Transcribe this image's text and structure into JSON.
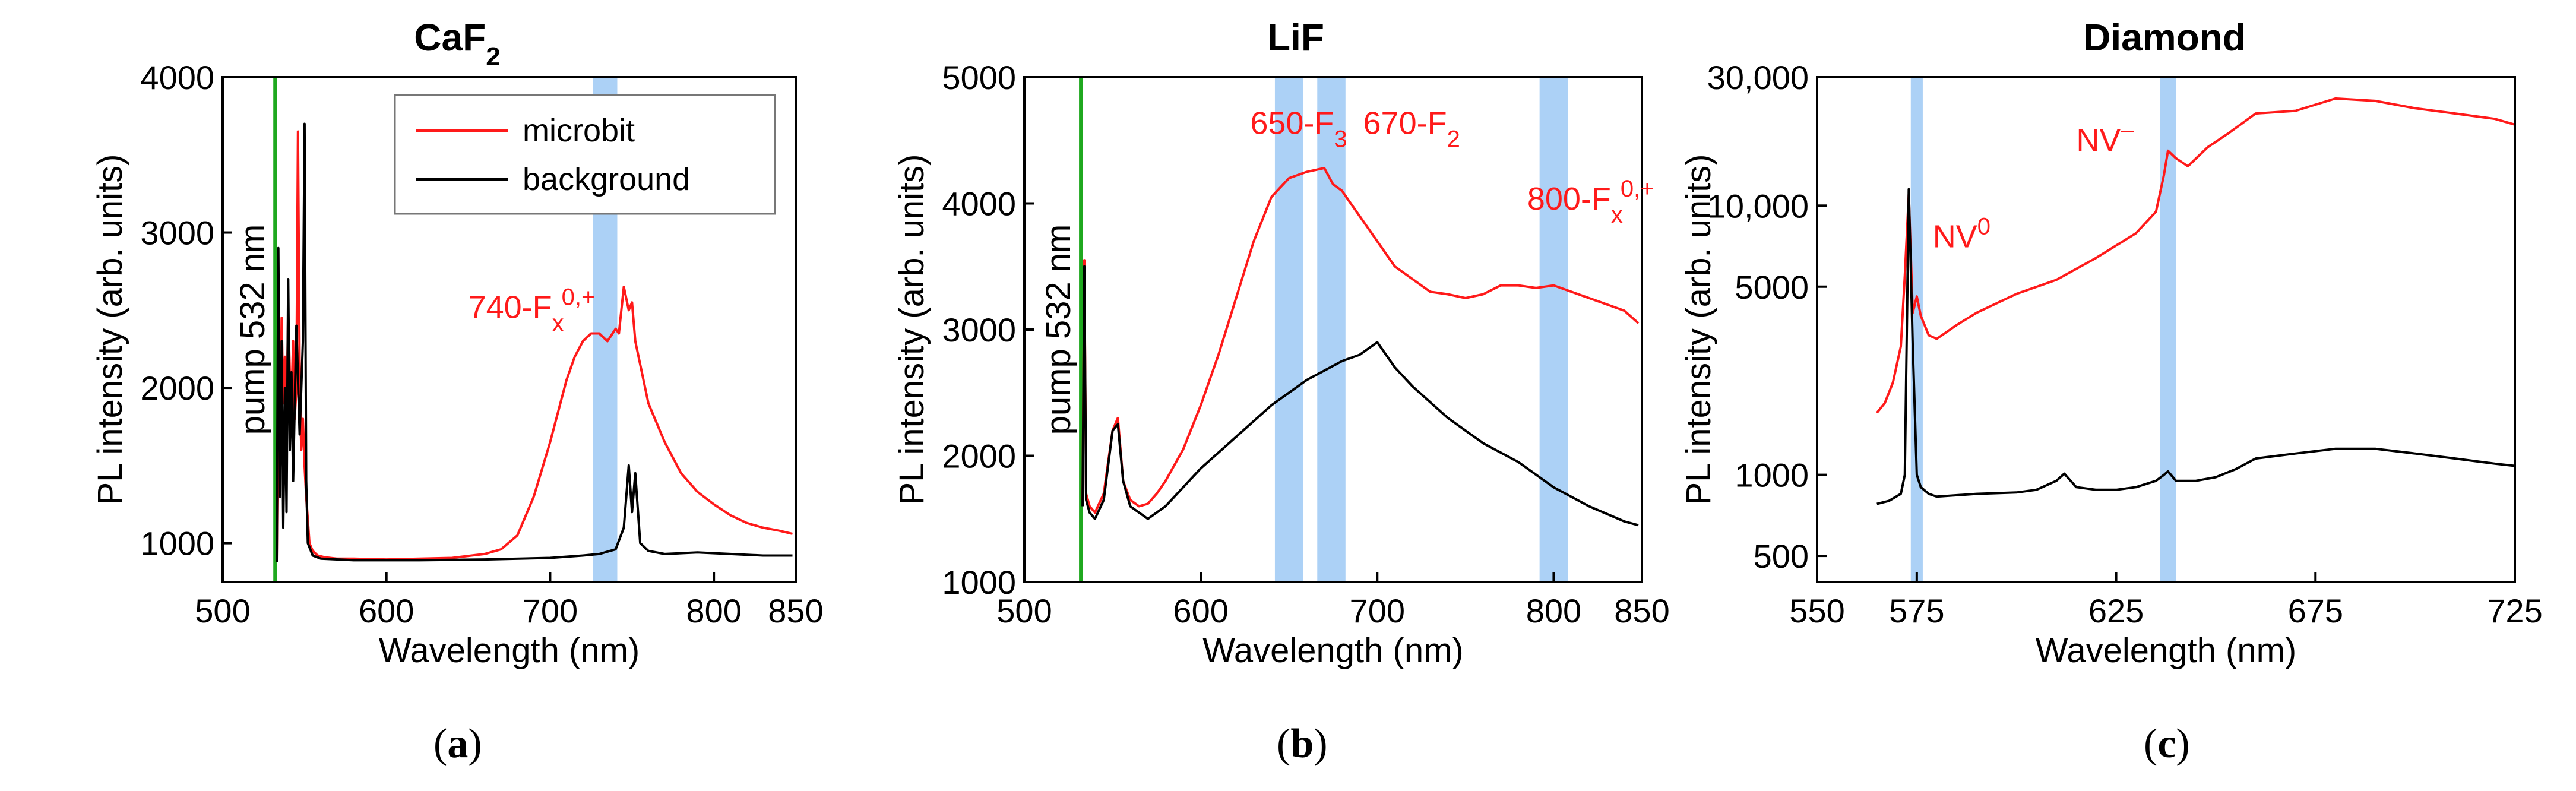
{
  "colors": {
    "microbit": "#ff1a1a",
    "background": "#000000",
    "pump": "#1fa81f",
    "band": "#9ec9f5",
    "annotation": "#ff1a1a"
  },
  "chart_data": [
    {
      "type": "line",
      "panel": "a",
      "caption": "a",
      "title": "CaF",
      "title_sub": "2",
      "xlabel": "Wavelength (nm)",
      "ylabel": "PL intensity (arb. units)",
      "xlim": [
        500,
        850
      ],
      "ylim": [
        750,
        4000
      ],
      "y_scale": "linear",
      "x_ticks": [
        500,
        600,
        700,
        800,
        850
      ],
      "x_tick_labels": [
        "500",
        "600",
        "700",
        "800",
        "850"
      ],
      "y_ticks": [
        1000,
        2000,
        3000,
        4000
      ],
      "y_tick_labels": [
        "1000",
        "2000",
        "3000",
        "4000"
      ],
      "legend": {
        "position": "top-right",
        "entries": [
          "microbit",
          "background"
        ]
      },
      "pump_line": {
        "x": 532,
        "label": "pump 532 nm"
      },
      "bands": [
        {
          "from": 726,
          "to": 741
        }
      ],
      "annotations": [
        {
          "text": "740-F",
          "sub": "x",
          "sup": "0,+",
          "x": 650,
          "y": 2450
        }
      ],
      "series": [
        {
          "name": "microbit",
          "x": [
            533,
            534,
            535,
            536,
            537,
            538,
            539,
            540,
            541,
            542,
            543,
            544,
            545,
            546,
            547,
            548,
            549,
            550,
            551,
            552,
            553,
            555,
            558,
            562,
            570,
            580,
            600,
            620,
            640,
            660,
            670,
            680,
            690,
            700,
            705,
            710,
            715,
            720,
            725,
            730,
            735,
            740,
            742,
            745,
            748,
            750,
            752,
            755,
            760,
            770,
            780,
            790,
            800,
            810,
            820,
            830,
            840,
            848
          ],
          "y": [
            900,
            2000,
            1600,
            2450,
            1900,
            2200,
            1800,
            2500,
            2100,
            1900,
            2300,
            1800,
            2000,
            3650,
            2100,
            1600,
            1800,
            1500,
            1300,
            1150,
            1000,
            950,
            920,
            910,
            900,
            900,
            895,
            900,
            905,
            930,
            960,
            1050,
            1300,
            1650,
            1850,
            2050,
            2200,
            2300,
            2350,
            2350,
            2300,
            2380,
            2350,
            2650,
            2500,
            2550,
            2300,
            2150,
            1900,
            1650,
            1450,
            1330,
            1250,
            1180,
            1130,
            1100,
            1080,
            1060
          ]
        },
        {
          "name": "background",
          "x": [
            533,
            534,
            535,
            536,
            537,
            538,
            539,
            540,
            541,
            542,
            543,
            545,
            547,
            549,
            550,
            551,
            552,
            555,
            560,
            580,
            620,
            660,
            700,
            720,
            730,
            740,
            745,
            748,
            750,
            752,
            755,
            760,
            770,
            790,
            810,
            830,
            848
          ],
          "y": [
            880,
            2900,
            1300,
            2300,
            1100,
            2000,
            1200,
            2700,
            1600,
            2100,
            1400,
            2400,
            1700,
            2300,
            3700,
            1400,
            1000,
            920,
            900,
            890,
            890,
            895,
            905,
            920,
            930,
            960,
            1100,
            1500,
            1200,
            1450,
            1000,
            950,
            930,
            940,
            930,
            920,
            920
          ]
        }
      ]
    },
    {
      "type": "line",
      "panel": "b",
      "caption": "b",
      "title": "LiF",
      "xlabel": "Wavelength (nm)",
      "ylabel": "PL intensity (arb. units)",
      "xlim": [
        500,
        850
      ],
      "ylim": [
        1000,
        5000
      ],
      "y_scale": "linear",
      "x_ticks": [
        500,
        600,
        700,
        800,
        850
      ],
      "x_tick_labels": [
        "500",
        "600",
        "700",
        "800",
        "850"
      ],
      "y_ticks": [
        1000,
        2000,
        3000,
        4000,
        5000
      ],
      "y_tick_labels": [
        "1000",
        "2000",
        "3000",
        "4000",
        "5000"
      ],
      "pump_line": {
        "x": 532,
        "label": "pump 532 nm"
      },
      "bands": [
        {
          "from": 642,
          "to": 658
        },
        {
          "from": 666,
          "to": 682
        },
        {
          "from": 792,
          "to": 808
        }
      ],
      "annotations": [
        {
          "text": "650-F",
          "sub": "3",
          "x": 628,
          "y": 4550
        },
        {
          "text": "670-F",
          "sub": "2",
          "x": 692,
          "y": 4550
        },
        {
          "text": "800-F",
          "sub": "x",
          "sup": "0,+",
          "x": 785,
          "y": 3950
        }
      ],
      "series": [
        {
          "name": "microbit",
          "x": [
            533,
            534,
            535,
            537,
            540,
            545,
            550,
            553,
            556,
            560,
            565,
            570,
            575,
            580,
            590,
            600,
            610,
            620,
            630,
            640,
            650,
            660,
            670,
            675,
            680,
            690,
            700,
            710,
            720,
            730,
            740,
            750,
            760,
            770,
            780,
            790,
            800,
            810,
            820,
            830,
            840,
            848
          ],
          "y": [
            1650,
            3550,
            1700,
            1600,
            1550,
            1700,
            2200,
            2300,
            1800,
            1650,
            1600,
            1620,
            1700,
            1800,
            2050,
            2400,
            2800,
            3250,
            3700,
            4050,
            4200,
            4250,
            4280,
            4150,
            4100,
            3900,
            3700,
            3500,
            3400,
            3300,
            3280,
            3250,
            3280,
            3350,
            3350,
            3330,
            3350,
            3300,
            3250,
            3200,
            3150,
            3050
          ]
        },
        {
          "name": "background",
          "x": [
            533,
            534,
            535,
            537,
            540,
            545,
            550,
            553,
            556,
            560,
            565,
            570,
            580,
            600,
            620,
            640,
            660,
            680,
            690,
            700,
            710,
            720,
            740,
            760,
            780,
            800,
            820,
            840,
            848
          ],
          "y": [
            1600,
            3500,
            1650,
            1550,
            1500,
            1650,
            2200,
            2250,
            1800,
            1600,
            1550,
            1500,
            1600,
            1900,
            2150,
            2400,
            2600,
            2750,
            2800,
            2900,
            2700,
            2550,
            2300,
            2100,
            1950,
            1750,
            1600,
            1480,
            1450
          ]
        }
      ]
    },
    {
      "type": "line",
      "panel": "c",
      "caption": "c",
      "title": "Diamond",
      "xlabel": "Wavelength (nm)",
      "ylabel": "PL intensity (arb. units)",
      "xlim": [
        550,
        725
      ],
      "ylim": [
        400,
        30000
      ],
      "y_scale": "log",
      "x_ticks": [
        550,
        575,
        625,
        675,
        725
      ],
      "x_tick_labels": [
        "550",
        "575",
        "625",
        "675",
        "725"
      ],
      "y_ticks": [
        500,
        1000,
        5000,
        10000,
        30000
      ],
      "y_tick_labels": [
        "500",
        "1000",
        "5000",
        "10,000",
        "30,000"
      ],
      "bands": [
        {
          "from": 573.5,
          "to": 576.5
        },
        {
          "from": 636,
          "to": 640
        }
      ],
      "annotations": [
        {
          "text": "NV",
          "sup": "0",
          "x": 579,
          "y": 7000
        },
        {
          "text": "NV",
          "sup": "‒",
          "x": 615,
          "y": 16000
        }
      ],
      "series": [
        {
          "name": "microbit",
          "x": [
            565,
            567,
            569,
            571,
            572,
            573,
            574,
            575,
            576,
            578,
            580,
            585,
            590,
            600,
            610,
            620,
            630,
            635,
            637,
            638,
            640,
            643,
            648,
            653,
            660,
            670,
            680,
            690,
            700,
            710,
            720,
            725
          ],
          "y": [
            1700,
            1850,
            2200,
            3000,
            5500,
            11000,
            4000,
            4600,
            3900,
            3300,
            3200,
            3600,
            4000,
            4700,
            5300,
            6400,
            7900,
            9500,
            13000,
            16000,
            15000,
            14000,
            16500,
            18500,
            22000,
            22500,
            25000,
            24500,
            23000,
            22000,
            21000,
            20000
          ]
        },
        {
          "name": "background",
          "x": [
            565,
            568,
            571,
            572,
            573,
            574,
            575,
            576,
            578,
            580,
            590,
            600,
            605,
            610,
            612,
            615,
            620,
            625,
            630,
            635,
            637,
            638,
            640,
            645,
            650,
            655,
            660,
            670,
            680,
            690,
            700,
            710,
            720,
            725
          ],
          "y": [
            780,
            800,
            850,
            1000,
            11500,
            3000,
            1000,
            900,
            850,
            830,
            850,
            860,
            880,
            950,
            1010,
            900,
            880,
            880,
            900,
            950,
            1000,
            1030,
            950,
            950,
            980,
            1050,
            1150,
            1200,
            1250,
            1250,
            1200,
            1150,
            1100,
            1080
          ]
        }
      ]
    }
  ]
}
